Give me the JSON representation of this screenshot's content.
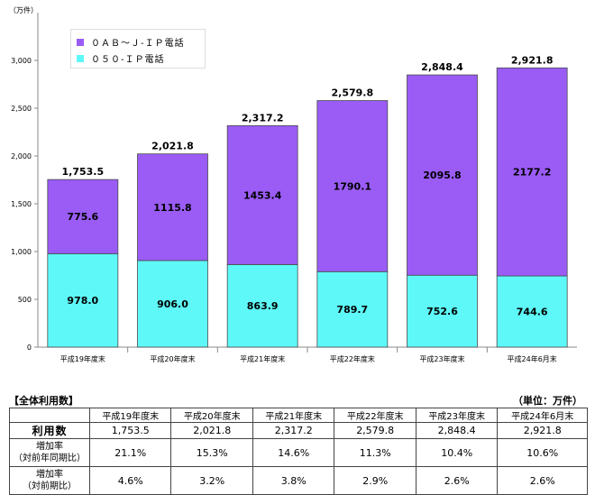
{
  "chart_data": {
    "type": "bar",
    "stacked": true,
    "unit_label": "（万件）",
    "categories": [
      "平成19年度末",
      "平成20年度末",
      "平成21年度末",
      "平成22年度末",
      "平成23年度末",
      "平成24年6月末"
    ],
    "series": [
      {
        "name": "０５０-ＩＰ電話",
        "values": [
          978.0,
          906.0,
          863.9,
          789.7,
          752.6,
          744.6
        ],
        "labels": [
          "978.0",
          "906.0",
          "863.9",
          "789.7",
          "752.6",
          "744.6"
        ],
        "color": "#5ef8f8"
      },
      {
        "name": "０ＡＢ～Ｊ-ＩＰ電話",
        "values": [
          775.6,
          1115.8,
          1453.4,
          1790.1,
          2095.8,
          2177.2
        ],
        "labels": [
          "775.6",
          "1115.8",
          "1453.4",
          "1790.1",
          "2095.8",
          "2177.2"
        ],
        "color": "#9a5cf5"
      }
    ],
    "totals": [
      "1,753.5",
      "2,021.8",
      "2,317.2",
      "2,579.8",
      "2,848.4",
      "2,921.8"
    ],
    "y_ticks": [
      {
        "value": 0,
        "label": "0"
      },
      {
        "value": 500,
        "label": "500"
      },
      {
        "value": 1000,
        "label": "1,000"
      },
      {
        "value": 1500,
        "label": "1,500"
      },
      {
        "value": 2000,
        "label": "2,000"
      },
      {
        "value": 2500,
        "label": "2,500"
      },
      {
        "value": 3000,
        "label": "3,000"
      }
    ],
    "ylim": [
      0,
      3500
    ],
    "grid": false,
    "legend": "top-left"
  },
  "table": {
    "title": "【全体利用数】",
    "unit": "（単位：万件）",
    "headers": [
      "平成19年度末",
      "平成20年度末",
      "平成21年度末",
      "平成22年度末",
      "平成23年度末",
      "平成24年6月末"
    ],
    "rows": [
      {
        "label": "利用数",
        "values": [
          "1,753.5",
          "2,021.8",
          "2,317.2",
          "2,579.8",
          "2,848.4",
          "2,921.8"
        ]
      },
      {
        "label": "増加率",
        "sublabel": "（対前年同期比）",
        "values": [
          "21.1%",
          "15.3%",
          "14.6%",
          "11.3%",
          "10.4%",
          "10.6%"
        ]
      },
      {
        "label": "増加率",
        "sublabel": "（対前期比）",
        "values": [
          "4.6%",
          "3.2%",
          "3.8%",
          "2.9%",
          "2.6%",
          "2.6%"
        ]
      }
    ]
  }
}
